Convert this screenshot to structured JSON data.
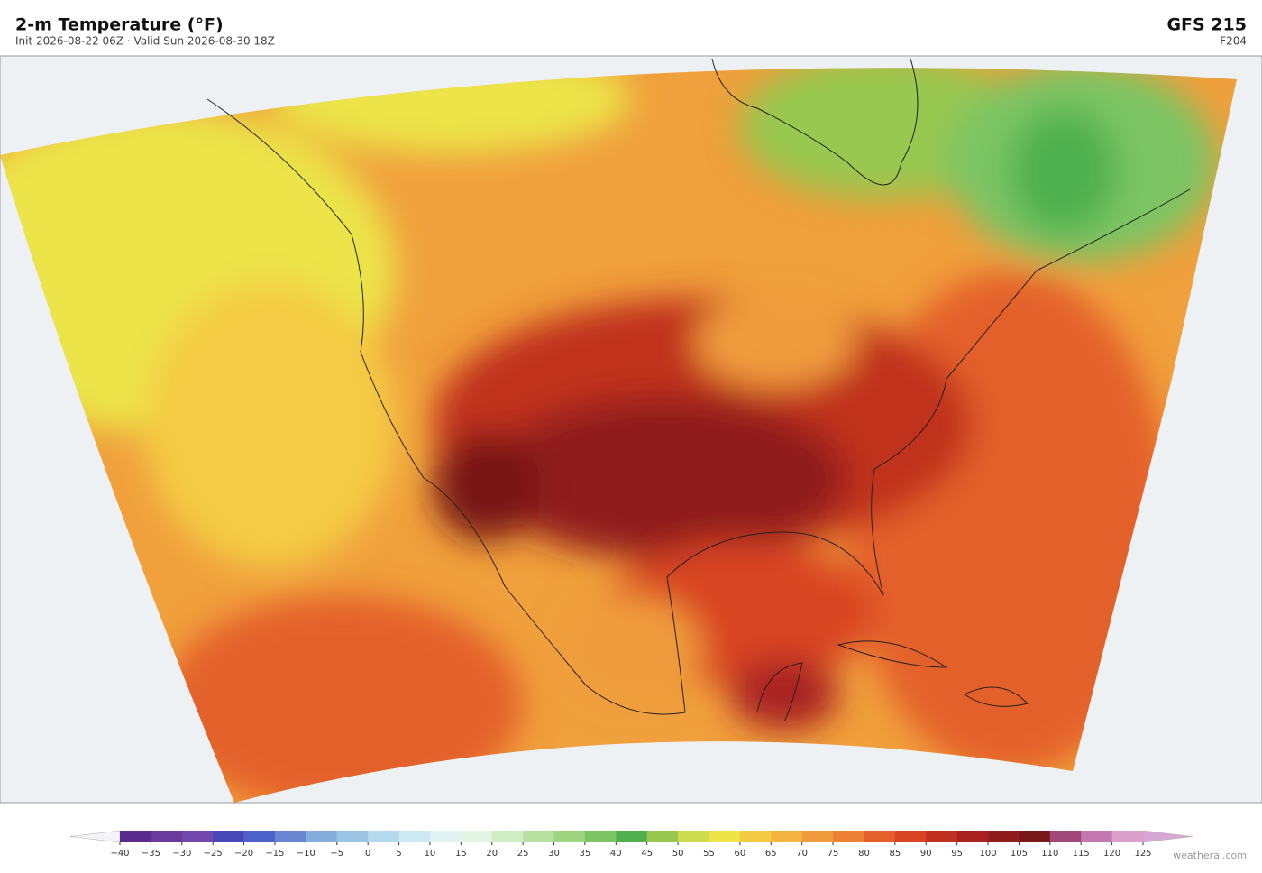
{
  "header": {
    "title": "2-m Temperature  (°F)",
    "subtitle": "Init 2026-08-22 06Z  ·  Valid Sun 2026-08-30 18Z",
    "model": "GFS  215",
    "forecast_hour": "F204"
  },
  "colorbar": {
    "ticks": [
      {
        "value": -40,
        "label": "−40"
      },
      {
        "value": -35,
        "label": "−35"
      },
      {
        "value": -30,
        "label": "−30"
      },
      {
        "value": -25,
        "label": "−25"
      },
      {
        "value": -20,
        "label": "−20"
      },
      {
        "value": -15,
        "label": "−15"
      },
      {
        "value": -10,
        "label": "−10"
      },
      {
        "value": -5,
        "label": "−5"
      },
      0,
      5,
      10,
      15,
      20,
      25,
      30,
      35,
      40,
      45,
      50,
      55,
      60,
      65,
      70,
      75,
      80,
      85,
      90,
      95,
      100,
      105,
      110,
      115,
      120,
      125
    ],
    "colors": [
      "#5a2a8c",
      "#6a3a9c",
      "#7248ac",
      "#4848b8",
      "#4c62c8",
      "#6a86d0",
      "#86acdc",
      "#9cc4e4",
      "#b4d8ec",
      "#cce8f2",
      "#e0f2f2",
      "#e4f4e4",
      "#d0ecc4",
      "#b8e0a0",
      "#9cd480",
      "#7cc464",
      "#50b050",
      "#98c850",
      "#cedc50",
      "#ece448",
      "#f4cc44",
      "#f4b440",
      "#f09c3c",
      "#ec8034",
      "#e4602c",
      "#d84424",
      "#c0301e",
      "#a82020",
      "#901c1c",
      "#781818",
      "#a04878",
      "#c478b0",
      "#dca0cc"
    ]
  },
  "credit": "weatherai.com"
}
